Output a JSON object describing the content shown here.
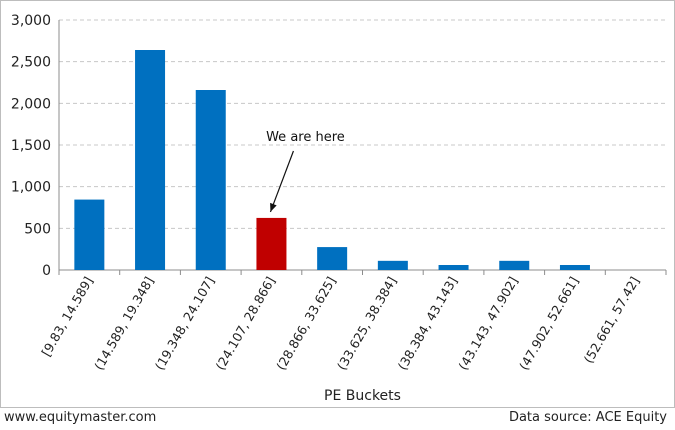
{
  "chart_data": {
    "type": "bar",
    "categories": [
      "[9.83, 14.589]",
      "(14.589, 19.348]",
      "(19.348, 24.107]",
      "(24.107, 28.866]",
      "(28.866, 33.625]",
      "(33.625, 38.384]",
      "(38.384, 43.143]",
      "(43.143, 47.902]",
      "(47.902, 52.661]",
      "(52.661, 57.42]"
    ],
    "values": [
      845,
      2640,
      2160,
      625,
      275,
      110,
      60,
      110,
      60,
      0
    ],
    "highlight_index": 3,
    "colors": {
      "bar": "#0070c0",
      "highlight": "#c00000",
      "grid": "#c8c8c8",
      "axis": "#8c8c8c"
    },
    "xlabel": "PE Buckets",
    "ylabel": "",
    "ylim": [
      0,
      3000
    ],
    "yticks": [
      0,
      500,
      1000,
      1500,
      2000,
      2500,
      3000
    ],
    "ytick_labels": [
      "0",
      "500",
      "1,000",
      "1,500",
      "2,000",
      "2,500",
      "3,000"
    ],
    "grid": true,
    "annotation": {
      "text": "We are here",
      "target_index": 3
    }
  },
  "footer": {
    "left": "www.equitymaster.com",
    "right": "Data source: ACE Equity"
  }
}
